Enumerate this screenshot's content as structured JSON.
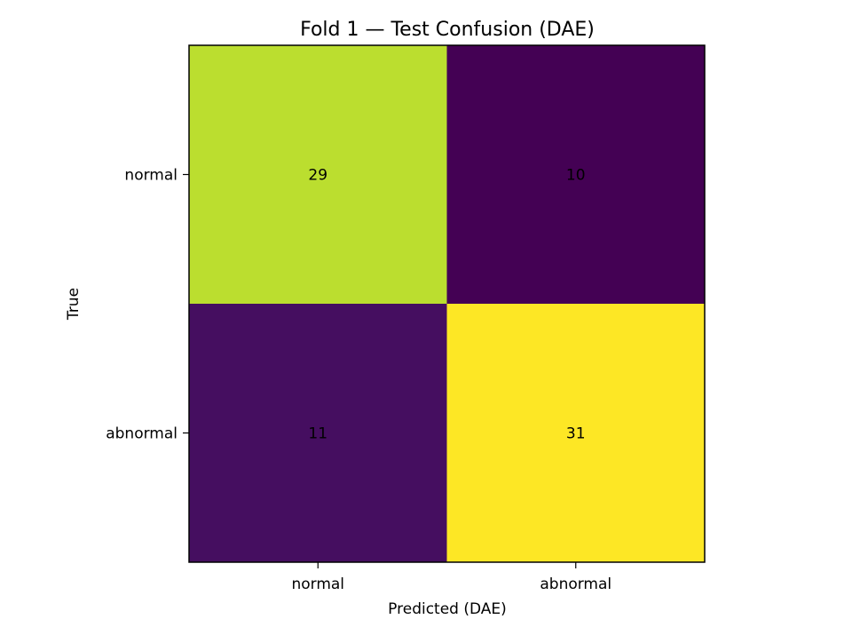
{
  "chart_data": {
    "type": "heatmap",
    "title": "Fold 1 — Test Confusion (DAE)",
    "xlabel": "Predicted (DAE)",
    "ylabel": "True",
    "x_categories": [
      "normal",
      "abnormal"
    ],
    "y_categories": [
      "normal",
      "abnormal"
    ],
    "values": [
      [
        29,
        10
      ],
      [
        11,
        31
      ]
    ],
    "colormap": "viridis",
    "grid": false
  }
}
